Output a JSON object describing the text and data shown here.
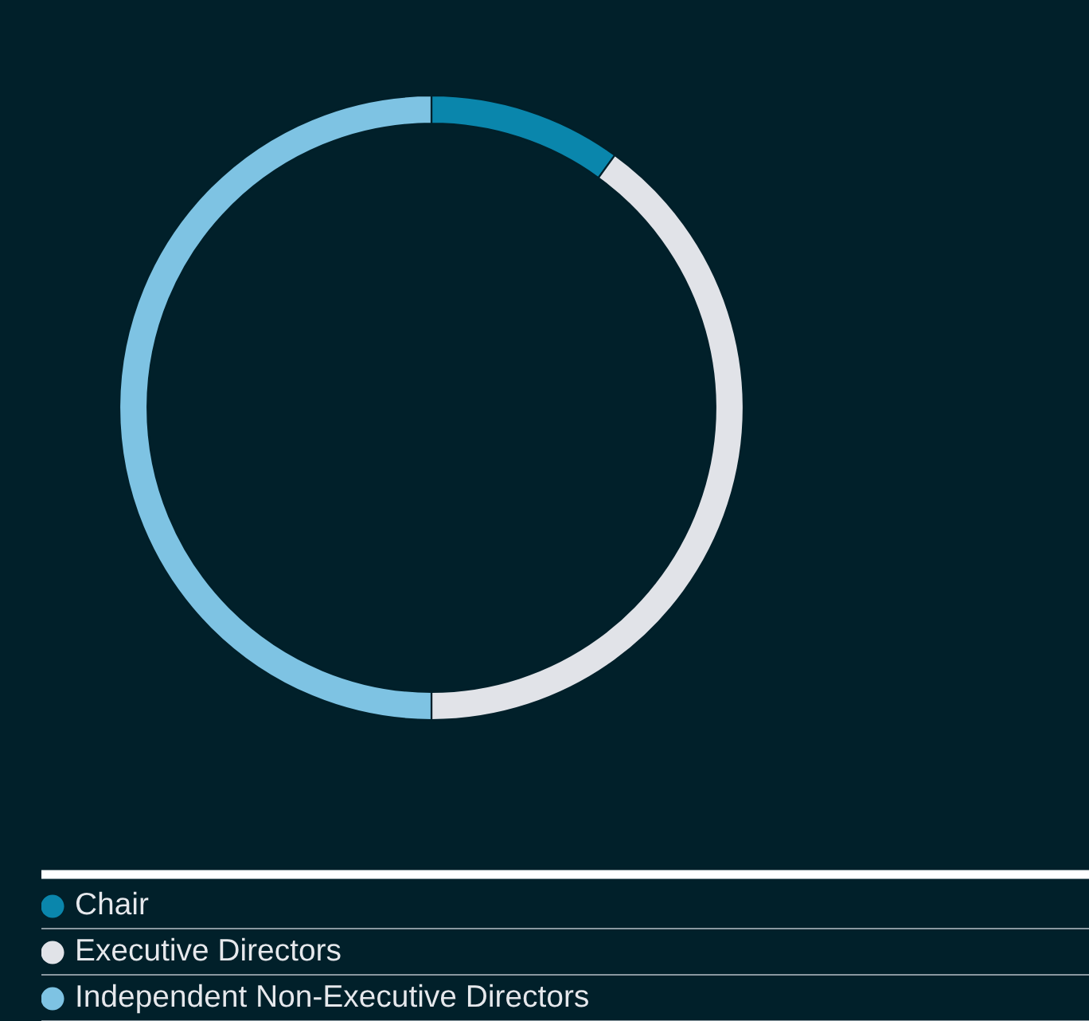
{
  "chart_data": {
    "type": "donut",
    "categories": [
      "Chair",
      "Executive Directors",
      "Independent Non-Executive Directors"
    ],
    "values": [
      10,
      40,
      50
    ],
    "colors": [
      "#0a86ac",
      "#e1e3e8",
      "#7ec3e3"
    ],
    "legend": "bottom"
  }
}
